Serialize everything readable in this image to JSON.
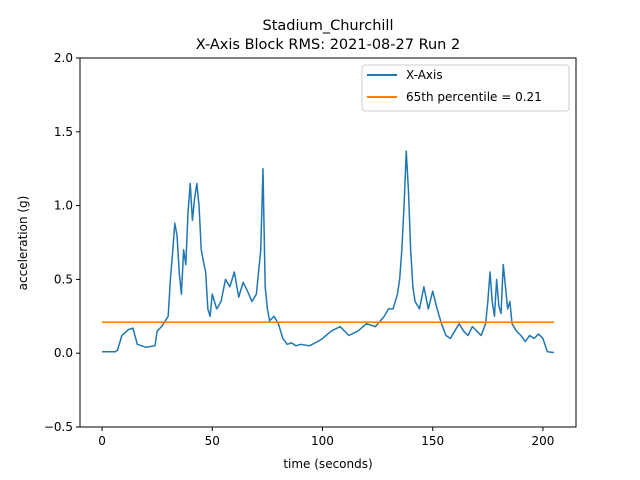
{
  "chart_data": {
    "type": "line",
    "title_line1": "Stadium_Churchill",
    "title_line2": "X-Axis Block RMS: 2021-08-27 Run 2",
    "xlabel": "time (seconds)",
    "ylabel": "acceleration (g)",
    "xlim": [
      -10,
      215
    ],
    "ylim": [
      -0.5,
      2.0
    ],
    "xticks": [
      0,
      50,
      100,
      150,
      200
    ],
    "yticks": [
      -0.5,
      0.0,
      0.5,
      1.0,
      1.5,
      2.0
    ],
    "xtick_labels": [
      "0",
      "50",
      "100",
      "150",
      "200"
    ],
    "ytick_labels": [
      "−0.5",
      "0.0",
      "0.5",
      "1.0",
      "1.5",
      "2.0"
    ],
    "legend_position": "top-right",
    "grid": false,
    "series": [
      {
        "name": "X-Axis",
        "color": "#1f77b4",
        "x": [
          0,
          6,
          7,
          9,
          12,
          14,
          16,
          20,
          24,
          25,
          27,
          30,
          31,
          32,
          33,
          34,
          35,
          36,
          37,
          38,
          39,
          40,
          41,
          42,
          43,
          44,
          45,
          46,
          47,
          48,
          49,
          50,
          52,
          54,
          56,
          58,
          60,
          62,
          64,
          66,
          68,
          70,
          71,
          72,
          73,
          74,
          75,
          76,
          78,
          80,
          82,
          84,
          86,
          88,
          90,
          94,
          98,
          100,
          104,
          108,
          112,
          116,
          120,
          124,
          128,
          130,
          132,
          134,
          135,
          136,
          137,
          138,
          139,
          140,
          141,
          142,
          144,
          146,
          148,
          150,
          152,
          154,
          156,
          158,
          160,
          162,
          164,
          166,
          168,
          170,
          172,
          174,
          175,
          176,
          177,
          178,
          179,
          180,
          181,
          182,
          183,
          184,
          185,
          186,
          188,
          190,
          192,
          194,
          196,
          198,
          200,
          202,
          205
        ],
        "values": [
          0.01,
          0.01,
          0.02,
          0.12,
          0.16,
          0.17,
          0.06,
          0.04,
          0.05,
          0.15,
          0.18,
          0.25,
          0.5,
          0.68,
          0.88,
          0.8,
          0.55,
          0.4,
          0.7,
          0.6,
          0.95,
          1.15,
          0.9,
          1.05,
          1.15,
          1.0,
          0.7,
          0.62,
          0.55,
          0.3,
          0.25,
          0.4,
          0.3,
          0.35,
          0.5,
          0.45,
          0.55,
          0.38,
          0.48,
          0.42,
          0.35,
          0.4,
          0.55,
          0.7,
          1.25,
          0.45,
          0.3,
          0.22,
          0.25,
          0.2,
          0.1,
          0.06,
          0.07,
          0.05,
          0.06,
          0.05,
          0.08,
          0.1,
          0.15,
          0.18,
          0.12,
          0.15,
          0.2,
          0.18,
          0.25,
          0.3,
          0.3,
          0.4,
          0.5,
          0.7,
          1.0,
          1.37,
          1.1,
          0.7,
          0.45,
          0.35,
          0.3,
          0.45,
          0.3,
          0.42,
          0.3,
          0.2,
          0.12,
          0.1,
          0.15,
          0.2,
          0.15,
          0.12,
          0.18,
          0.15,
          0.12,
          0.2,
          0.35,
          0.55,
          0.35,
          0.25,
          0.5,
          0.32,
          0.27,
          0.6,
          0.45,
          0.3,
          0.35,
          0.2,
          0.15,
          0.12,
          0.08,
          0.12,
          0.1,
          0.13,
          0.1,
          0.01,
          0.005
        ]
      },
      {
        "name": "65th percentile = 0.21",
        "color": "#ff7f0e",
        "x": [
          0,
          205
        ],
        "values": [
          0.21,
          0.21
        ]
      }
    ]
  }
}
